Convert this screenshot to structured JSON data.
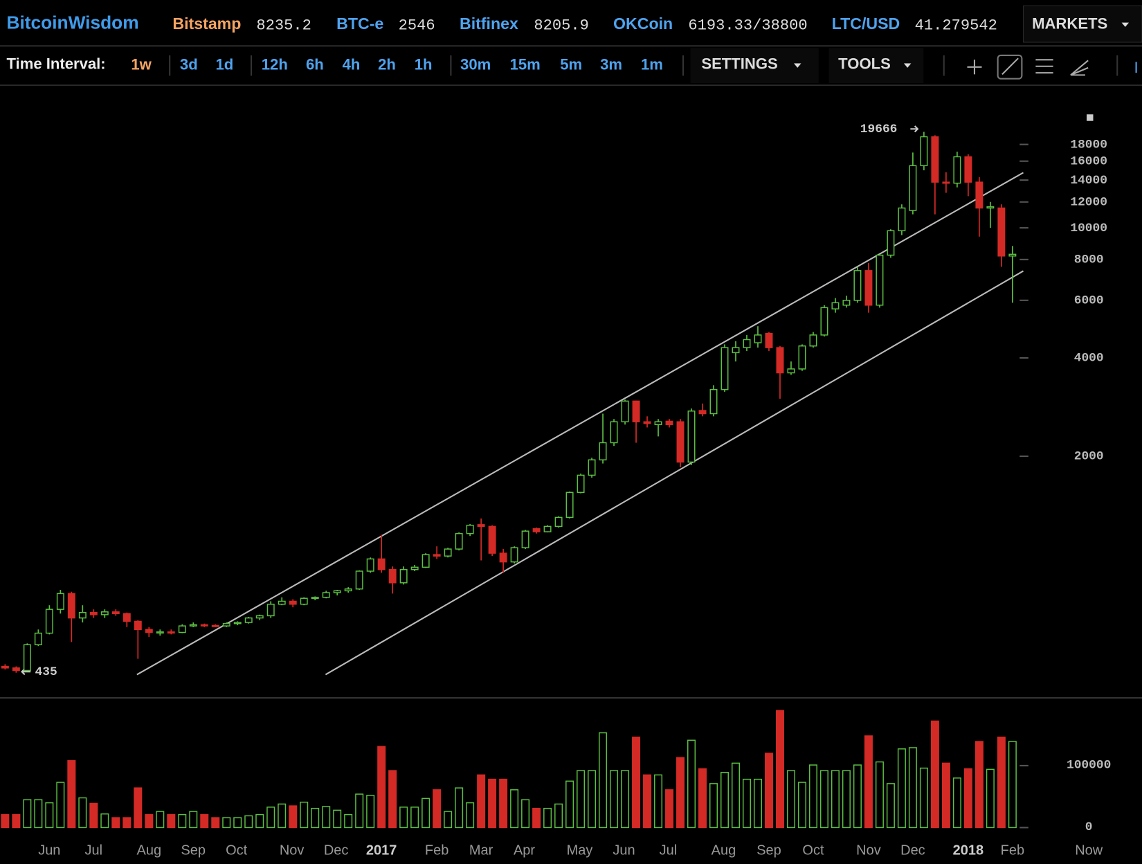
{
  "header": {
    "brand": "BitcoinWisdom",
    "tickers": [
      {
        "name": "Bitstamp",
        "price": "8235.2"
      },
      {
        "name": "BTC-e",
        "price": "2546"
      },
      {
        "name": "Bitfinex",
        "price": "8205.9"
      },
      {
        "name": "OKCoin",
        "price": "6193.33/38800"
      },
      {
        "name": "LTC/USD",
        "price": "41.279542"
      }
    ],
    "markets": "MARKETS"
  },
  "toolbar": {
    "label": "Time Interval:",
    "intervals": [
      "1w",
      "3d",
      "1d",
      "12h",
      "6h",
      "4h",
      "2h",
      "1h",
      "30m",
      "15m",
      "5m",
      "3m",
      "1m"
    ],
    "active": 0,
    "settings": "SETTINGS",
    "tools": "TOOLS"
  },
  "chart_data": {
    "type": "candlestick",
    "log_scale": true,
    "up_color": "#5cc043",
    "down_color": "#d42a26",
    "open": [
      455,
      450,
      442,
      530,
      575,
      680,
      760,
      640,
      665,
      655,
      668,
      660,
      625,
      590,
      578,
      580,
      578,
      605,
      610,
      607,
      605,
      615,
      620,
      640,
      650,
      705,
      720,
      705,
      735,
      740,
      765,
      775,
      785,
      890,
      970,
      900,
      820,
      900,
      915,
      1000,
      990,
      1040,
      1160,
      1235,
      1220,
      1010,
      950,
      1050,
      1200,
      1175,
      1220,
      1300,
      1550,
      1750,
      1950,
      2200,
      2550,
      2950,
      2550,
      2500,
      2560,
      2550,
      1920,
      2760,
      2700,
      3200,
      4150,
      4300,
      4450,
      4750,
      4300,
      3600,
      3700,
      4350,
      4700,
      5650,
      5800,
      6000,
      7400,
      5800,
      8250,
      9800,
      11300,
      15500,
      19000,
      13800,
      13700,
      16500,
      13800,
      11500,
      11500,
      8200
    ],
    "high": [
      462,
      455,
      535,
      590,
      700,
      780,
      770,
      700,
      680,
      680,
      680,
      665,
      630,
      600,
      590,
      590,
      612,
      620,
      615,
      612,
      620,
      625,
      645,
      655,
      720,
      740,
      730,
      740,
      745,
      775,
      780,
      795,
      895,
      980,
      1150,
      920,
      920,
      930,
      1010,
      1060,
      1050,
      1170,
      1240,
      1290,
      1230,
      1040,
      1060,
      1190,
      1210,
      1230,
      1310,
      1560,
      1770,
      1980,
      2700,
      2600,
      2980,
      2960,
      2650,
      2600,
      2600,
      2600,
      2800,
      2900,
      3300,
      4400,
      4500,
      4700,
      5000,
      4800,
      4350,
      3900,
      4400,
      4800,
      5800,
      6100,
      6200,
      7600,
      7800,
      8300,
      9900,
      11800,
      17000,
      19666,
      19200,
      14800,
      17100,
      16800,
      14300,
      12000,
      11800,
      8800
    ],
    "low": [
      445,
      435,
      440,
      525,
      570,
      660,
      540,
      620,
      640,
      640,
      650,
      600,
      480,
      560,
      565,
      570,
      575,
      600,
      600,
      600,
      600,
      608,
      615,
      630,
      640,
      700,
      690,
      700,
      725,
      735,
      750,
      765,
      780,
      880,
      880,
      760,
      810,
      890,
      910,
      970,
      980,
      1030,
      1140,
      960,
      990,
      880,
      940,
      1040,
      1160,
      1170,
      1210,
      1290,
      1540,
      1720,
      1900,
      2150,
      2500,
      2200,
      2450,
      2300,
      2450,
      1850,
      1880,
      2650,
      2650,
      3150,
      3900,
      4200,
      4300,
      4200,
      3000,
      3550,
      3650,
      4300,
      4650,
      5500,
      5700,
      5900,
      5500,
      5700,
      8100,
      9500,
      11000,
      15000,
      11000,
      12800,
      13300,
      12500,
      9400,
      10000,
      7600,
      5900
    ],
    "close": [
      450,
      442,
      530,
      575,
      680,
      760,
      640,
      665,
      655,
      668,
      660,
      625,
      590,
      578,
      580,
      578,
      605,
      610,
      607,
      605,
      615,
      620,
      640,
      650,
      705,
      720,
      705,
      735,
      740,
      765,
      775,
      785,
      890,
      970,
      900,
      820,
      900,
      915,
      1000,
      990,
      1040,
      1160,
      1230,
      1220,
      1010,
      950,
      1050,
      1180,
      1175,
      1220,
      1300,
      1550,
      1750,
      1950,
      2200,
      2550,
      2950,
      2550,
      2520,
      2550,
      2500,
      1920,
      2750,
      2700,
      3200,
      4300,
      4300,
      4550,
      4700,
      4300,
      3600,
      3700,
      4350,
      4700,
      5700,
      5900,
      6000,
      7400,
      5800,
      8250,
      9800,
      11500,
      15500,
      19000,
      13800,
      13700,
      16500,
      13800,
      11500,
      11600,
      8200,
      8300
    ],
    "volume": [
      21000,
      21000,
      45000,
      45000,
      40000,
      73000,
      108000,
      48000,
      39000,
      22000,
      16000,
      16000,
      64000,
      21000,
      26000,
      21000,
      21000,
      26000,
      21000,
      16000,
      16000,
      16000,
      19000,
      21000,
      33000,
      38000,
      35000,
      41000,
      31000,
      34000,
      28000,
      21000,
      54000,
      52000,
      131000,
      92000,
      33000,
      33000,
      47000,
      61000,
      26000,
      64000,
      40000,
      85000,
      78000,
      78000,
      61000,
      45000,
      31000,
      31000,
      38000,
      75000,
      92000,
      92000,
      153000,
      92000,
      92000,
      146000,
      85000,
      85000,
      61000,
      113000,
      141000,
      95000,
      71000,
      89000,
      104000,
      78000,
      78000,
      120000,
      189000,
      92000,
      73000,
      101000,
      92000,
      92000,
      92000,
      101000,
      148000,
      106000,
      71000,
      127000,
      129000,
      96000,
      172000,
      104000,
      80000,
      95000,
      139000,
      94000,
      146000,
      139000
    ],
    "xlim": [
      -0.46,
      102.7
    ],
    "xticks": [
      {
        "value": 4.0,
        "label": "Jun"
      },
      {
        "value": 8.0,
        "label": "Jul"
      },
      {
        "value": 13.0,
        "label": "Aug"
      },
      {
        "value": 17.0,
        "label": "Sep"
      },
      {
        "value": 20.9,
        "label": "Oct"
      },
      {
        "value": 25.9,
        "label": "Nov"
      },
      {
        "value": 29.9,
        "label": "Dec"
      },
      {
        "value": 34.0,
        "label": "2017"
      },
      {
        "value": 39.0,
        "label": "Feb"
      },
      {
        "value": 43.0,
        "label": "Mar"
      },
      {
        "value": 46.9,
        "label": "Apr"
      },
      {
        "value": 51.9,
        "label": "May"
      },
      {
        "value": 55.9,
        "label": "Jun"
      },
      {
        "value": 59.9,
        "label": "Jul"
      },
      {
        "value": 64.9,
        "label": "Aug"
      },
      {
        "value": 69.0,
        "label": "Sep"
      },
      {
        "value": 73.0,
        "label": "Oct"
      },
      {
        "value": 78.0,
        "label": "Nov"
      },
      {
        "value": 82.0,
        "label": "Dec"
      },
      {
        "value": 87.0,
        "label": "2018"
      },
      {
        "value": 91.0,
        "label": "Feb"
      },
      {
        "value": 97.9,
        "label": "Now"
      }
    ],
    "ylim": [
      370,
      26900
    ],
    "yticks": [
      2000,
      4000,
      6000,
      8000,
      10000,
      12000,
      14000,
      16000,
      18000
    ],
    "volume_ylim": [
      0,
      207000
    ],
    "volume_yticks": [
      0,
      100000
    ]
  }
}
